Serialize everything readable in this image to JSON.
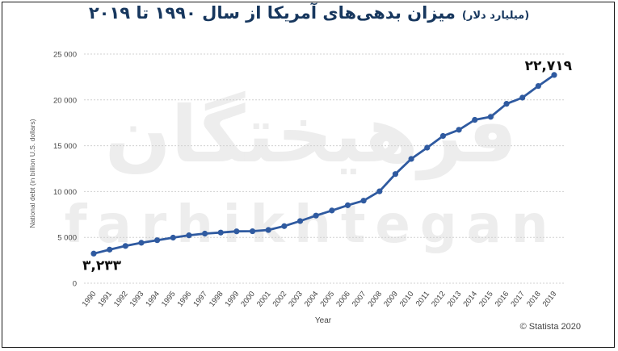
{
  "title": {
    "main": "میزان بدهی‌های آمریکا از سال ۱۹۹۰ تا ۲۰۱۹",
    "unit": "(میلیارد دلار)"
  },
  "watermark": {
    "persian": "فرهیختگان",
    "latin": "farhikhtegan"
  },
  "credit": "© Statista 2020",
  "colors": {
    "line": "#2f5aa0",
    "title": "#17375e",
    "grid": "#d0d0d0"
  },
  "chart_data": {
    "type": "line",
    "xlabel": "Year",
    "ylabel": "National debt (in billion U.S. dollars)",
    "ylim": [
      0,
      25000
    ],
    "yticks": [
      0,
      5000,
      10000,
      15000,
      20000,
      25000
    ],
    "ytick_labels": [
      "0",
      "5 000",
      "10 000",
      "15 000",
      "20 000",
      "25 000"
    ],
    "grid": "horizontal-dashed",
    "categories": [
      "1990",
      "1991",
      "1992",
      "1993",
      "1994",
      "1995",
      "1996",
      "1997",
      "1998",
      "1999",
      "2000",
      "2001",
      "2002",
      "2003",
      "2004",
      "2005",
      "2006",
      "2007",
      "2008",
      "2009",
      "2010",
      "2011",
      "2012",
      "2013",
      "2014",
      "2015",
      "2016",
      "2017",
      "2018",
      "2019"
    ],
    "series": [
      {
        "values": [
          3233,
          3665,
          4065,
          4411,
          4693,
          4974,
          5225,
          5413,
          5526,
          5656,
          5674,
          5807,
          6228,
          6783,
          7379,
          7933,
          8507,
          9008,
          10025,
          11910,
          13562,
          14790,
          16066,
          16738,
          17824,
          18151,
          19573,
          20245,
          21516,
          22719
        ]
      }
    ],
    "annotations": [
      {
        "label": "۳,۲۳۳",
        "category": "1990",
        "value": 3233
      },
      {
        "label": "۲۲,۷۱۹",
        "category": "2019",
        "value": 22719
      }
    ]
  }
}
